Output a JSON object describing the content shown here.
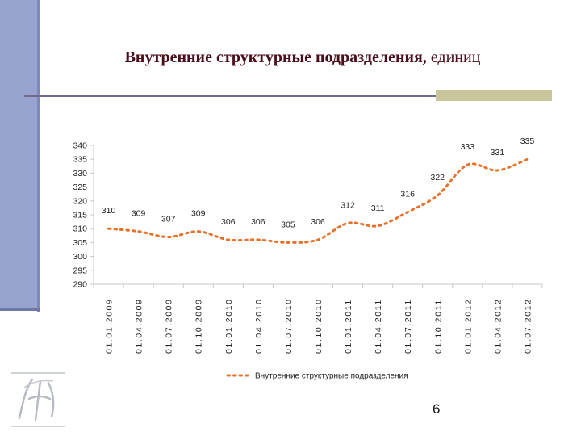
{
  "slide": {
    "title_bold": "Внутренние структурные подразделения,",
    "title_unit": " единиц",
    "page_number": "6",
    "colors": {
      "sidebar": "#99a3cf",
      "title": "#4a0f1a",
      "rule": "#6e6e8a",
      "rule_accent": "#c9c69b",
      "series": "#e8722a"
    },
    "logo_icon": "monogram-logo-icon"
  },
  "chart_data": {
    "type": "line",
    "title": "",
    "xlabel": "",
    "ylabel": "",
    "ylim": [
      290,
      340
    ],
    "yticks": [
      290,
      295,
      300,
      305,
      310,
      315,
      320,
      325,
      330,
      335,
      340
    ],
    "categories": [
      "01.01.2009",
      "01.04.2009",
      "01.07.2009",
      "01.10.2009",
      "01.01.2010",
      "01.04.2010",
      "01.07.2010",
      "01.10.2010",
      "01.01.2011",
      "01.04.2011",
      "01.07.2011",
      "01.10.2011",
      "01.01.2012",
      "01.04.2012",
      "01.07.2012"
    ],
    "series": [
      {
        "name": "Внутренние структурные подразделения",
        "values": [
          310,
          309,
          307,
          309,
          306,
          306,
          305,
          306,
          312,
          311,
          316,
          322,
          333,
          331,
          335
        ],
        "color": "#e8722a",
        "style": "dotted"
      }
    ],
    "legend_position": "bottom",
    "grid": false
  }
}
